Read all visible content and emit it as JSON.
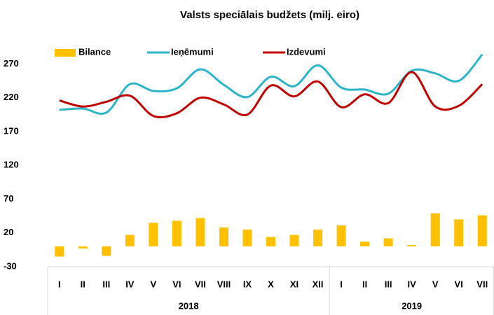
{
  "chart_data": {
    "type": "bar_line",
    "title": "Valsts speciālais budžets (milj. eiro)",
    "category_groups": [
      {
        "label": "2018",
        "categories": [
          "I",
          "II",
          "III",
          "IV",
          "V",
          "VI",
          "VII",
          "VIII",
          "IX",
          "X",
          "XI",
          "XII"
        ]
      },
      {
        "label": "2019",
        "categories": [
          "I",
          "II",
          "III",
          "IV",
          "V",
          "VI",
          "VII"
        ]
      }
    ],
    "series": [
      {
        "name": "Bilance",
        "kind": "bar",
        "color": "#ffc000",
        "values": [
          -15,
          -3,
          -14,
          17,
          35,
          38,
          42,
          28,
          25,
          14,
          17,
          25,
          31,
          7,
          12,
          2,
          49,
          40,
          46
        ]
      },
      {
        "name": "Ieņēmumi",
        "kind": "line",
        "color": "#2cb5c8",
        "values": [
          202,
          204,
          198,
          240,
          230,
          234,
          262,
          239,
          221,
          251,
          237,
          268,
          235,
          232,
          226,
          260,
          256,
          245,
          284
        ]
      },
      {
        "name": "Izdevumi",
        "kind": "line",
        "color": "#c00000",
        "values": [
          216,
          207,
          214,
          223,
          193,
          197,
          220,
          210,
          195,
          238,
          222,
          244,
          206,
          225,
          212,
          258,
          207,
          208,
          240
        ]
      }
    ],
    "ylim": [
      -30,
      290
    ],
    "yticks": [
      -30,
      20,
      70,
      120,
      170,
      220,
      270
    ],
    "grid": false,
    "legend": "top"
  }
}
